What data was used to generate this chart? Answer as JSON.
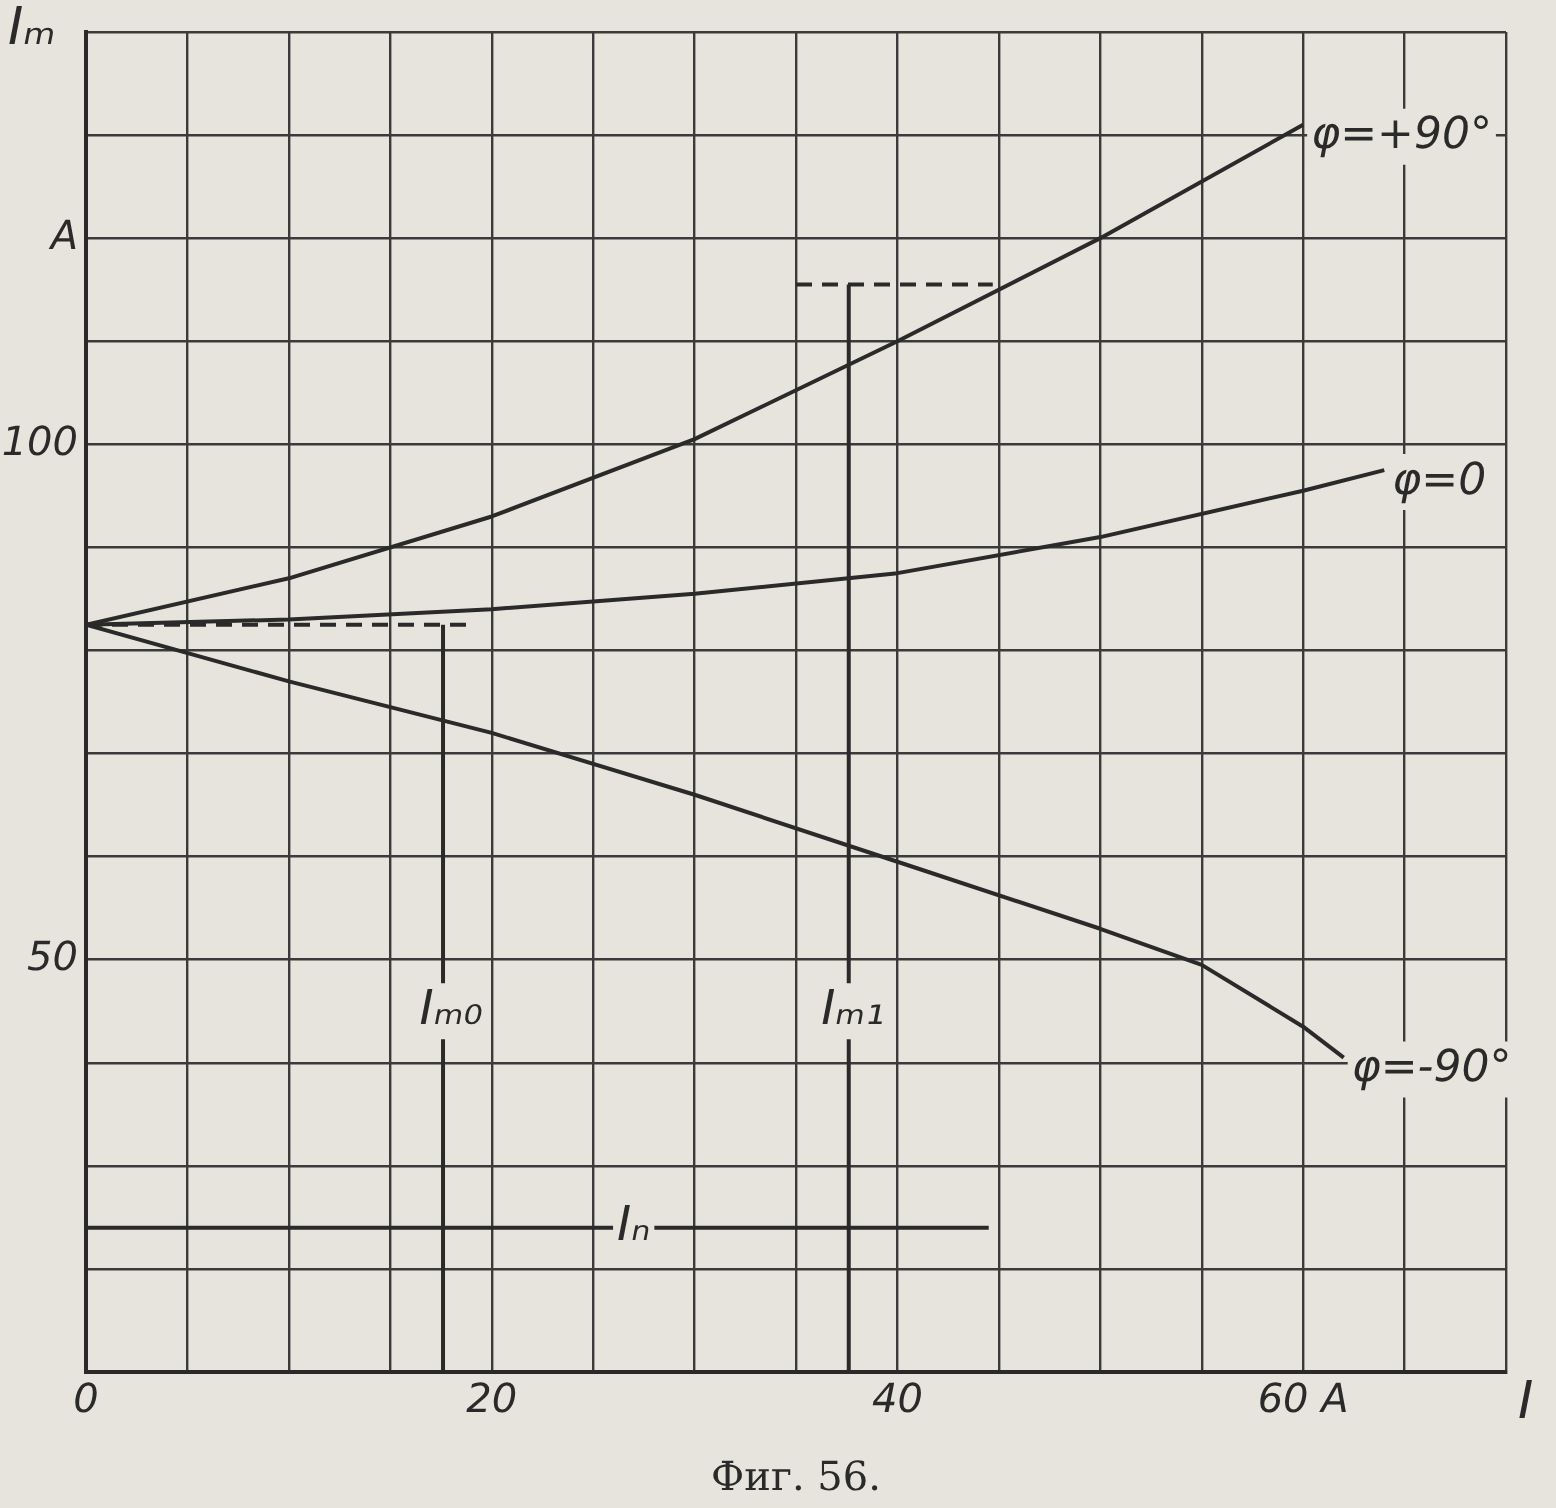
{
  "chart_data": {
    "type": "line",
    "xlabel": "I",
    "ylabel": "Iₘ",
    "xlim": [
      0,
      70
    ],
    "ylim": [
      10,
      140
    ],
    "xticks": [
      0,
      {
        "value": 5,
        "label": null
      },
      {
        "value": 10,
        "label": null
      },
      {
        "value": 15,
        "label": null
      },
      20,
      {
        "value": 25,
        "label": null
      },
      {
        "value": 30,
        "label": null
      },
      {
        "value": 35,
        "label": null
      },
      40,
      {
        "value": 45,
        "label": null
      },
      {
        "value": 50,
        "label": null
      },
      {
        "value": 55,
        "label": null
      },
      {
        "value": 60,
        "label": "60 A"
      },
      {
        "value": 65,
        "label": null
      },
      {
        "value": 70,
        "label": null
      }
    ],
    "yticks": [
      {
        "value": 10,
        "label": null
      },
      {
        "value": 20,
        "label": null
      },
      {
        "value": 30,
        "label": null
      },
      {
        "value": 40,
        "label": null
      },
      50,
      {
        "value": 60,
        "label": null
      },
      {
        "value": 70,
        "label": null
      },
      {
        "value": 80,
        "label": null
      },
      {
        "value": 90,
        "label": null
      },
      100,
      {
        "value": 110,
        "label": null
      },
      {
        "value": 120,
        "label": "A"
      },
      {
        "value": 130,
        "label": null
      },
      {
        "value": 140,
        "label": null
      }
    ],
    "grid": true,
    "marker": "none",
    "series": [
      {
        "name": "φ=+90°",
        "color": "#2a2a2a",
        "x": [
          0,
          10,
          20,
          30,
          40,
          50,
          60
        ],
        "values": [
          82.5,
          87,
          93,
          100.5,
          110,
          120,
          131
        ]
      },
      {
        "name": "φ=0",
        "color": "#2a2a2a",
        "x": [
          0,
          10,
          20,
          30,
          40,
          50,
          60,
          64
        ],
        "values": [
          82.5,
          83,
          84,
          85.5,
          87.5,
          91,
          95.5,
          97.5
        ]
      },
      {
        "name": "φ=-90°",
        "color": "#2a2a2a",
        "x": [
          0,
          10,
          20,
          30,
          40,
          50,
          55,
          60,
          62
        ],
        "values": [
          82.5,
          77,
          72,
          66,
          59.5,
          53,
          49.5,
          43.5,
          40.5
        ]
      },
      {
        "color": "#2a2a2a",
        "x": [
          17.6,
          17.6
        ],
        "values": [
          10,
          82.5
        ]
      },
      {
        "color": "#2a2a2a",
        "x": [
          37.6,
          37.6
        ],
        "values": [
          10,
          115.5
        ]
      },
      {
        "color": "#2a2a2a",
        "x": [
          0,
          44.5
        ],
        "values": [
          24,
          24
        ]
      },
      {
        "color": "#2a2a2a",
        "line_style": "dashed",
        "x": [
          0,
          19
        ],
        "values": [
          82.5,
          82.5
        ]
      },
      {
        "color": "#2a2a2a",
        "line_style": "dashed",
        "x": [
          35,
          44.7
        ],
        "values": [
          115.5,
          115.5
        ]
      }
    ],
    "annotations": [
      {
        "text": "Iₘ₀",
        "x": 18,
        "y": 45
      },
      {
        "text": "Iₘ₁",
        "x": 37.8,
        "y": 45
      },
      {
        "text": "Iₙ",
        "x": 27,
        "y": 24
      },
      "Фиг. 56."
    ]
  }
}
